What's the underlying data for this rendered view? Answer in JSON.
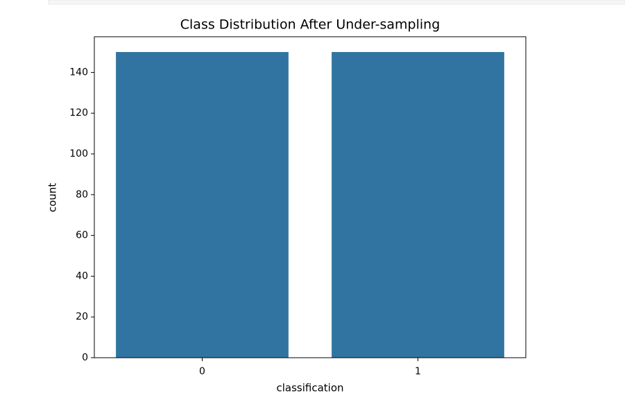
{
  "chart_data": {
    "type": "bar",
    "title": "Class Distribution After Under-sampling",
    "x_label": "classification",
    "y_label": "count",
    "categories": [
      "0",
      "1"
    ],
    "values": [
      150,
      150
    ],
    "color": "#3274a1",
    "ylim": [
      0,
      157.5
    ],
    "yticks": [
      0,
      20,
      40,
      60,
      80,
      100,
      120,
      140
    ],
    "grid": false
  }
}
